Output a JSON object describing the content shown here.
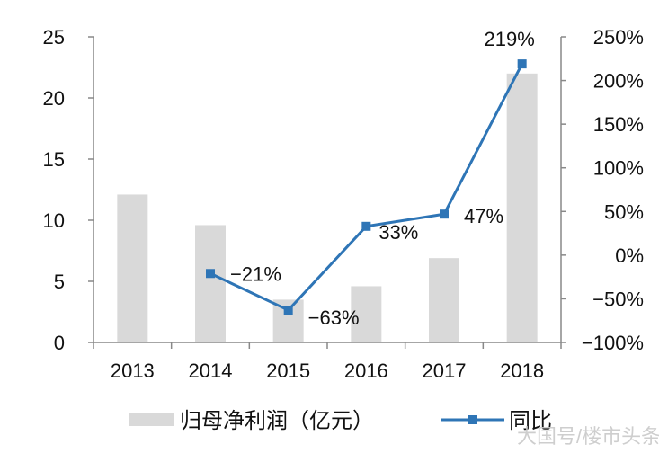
{
  "chart_data": {
    "type": "bar+line",
    "categories": [
      "2013",
      "2014",
      "2015",
      "2016",
      "2017",
      "2018"
    ],
    "series": [
      {
        "name": "归母净利润（亿元）",
        "type": "bar",
        "axis": "left",
        "color": "#d9d9d9",
        "values": [
          12.1,
          9.6,
          3.5,
          4.6,
          6.9,
          22.0
        ]
      },
      {
        "name": "同比",
        "type": "line",
        "axis": "right",
        "color": "#2e75b6",
        "values": [
          null,
          -21,
          -63,
          33,
          47,
          219
        ],
        "labels": [
          "",
          "-21%",
          "-63%",
          "33%",
          "47%",
          "219%"
        ]
      }
    ],
    "left_axis": {
      "range": [
        0,
        25
      ],
      "ticks": [
        "0",
        "5",
        "10",
        "15",
        "20",
        "25"
      ]
    },
    "right_axis": {
      "range": [
        -100,
        250
      ],
      "ticks": [
        "-100%",
        "-50%",
        "0%",
        "50%",
        "100%",
        "150%",
        "200%",
        "250%"
      ]
    },
    "grid": false,
    "legend_placement": "bottom"
  },
  "watermark": "大国号/楼市头条"
}
